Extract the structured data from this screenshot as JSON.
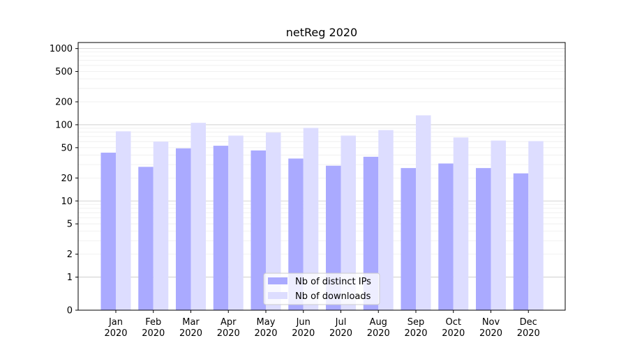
{
  "chart_data": {
    "type": "bar",
    "title": "netReg 2020",
    "xlabel": "",
    "ylabel": "",
    "yscale": "symlog",
    "ylim": [
      0,
      1200
    ],
    "yticks": [
      0,
      1,
      2,
      5,
      10,
      20,
      50,
      100,
      200,
      500,
      1000
    ],
    "ytick_labels": [
      "0",
      "1",
      "2",
      "5",
      "10",
      "20",
      "50",
      "100",
      "200",
      "500",
      "1000"
    ],
    "grid": "horizontal",
    "legend_position": "bottom-center",
    "categories": [
      "Jan\n2020",
      "Feb\n2020",
      "Mar\n2020",
      "Apr\n2020",
      "May\n2020",
      "Jun\n2020",
      "Jul\n2020",
      "Aug\n2020",
      "Sep\n2020",
      "Oct\n2020",
      "Nov\n2020",
      "Dec\n2020"
    ],
    "series": [
      {
        "name": "Nb of distinct IPs",
        "color": "#aaaaff",
        "values": [
          43,
          28,
          49,
          53,
          46,
          36,
          29,
          38,
          27,
          31,
          27,
          23
        ]
      },
      {
        "name": "Nb of downloads",
        "color": "#ddddff",
        "values": [
          82,
          60,
          106,
          72,
          79,
          91,
          72,
          85,
          133,
          68,
          62,
          61
        ]
      }
    ]
  }
}
